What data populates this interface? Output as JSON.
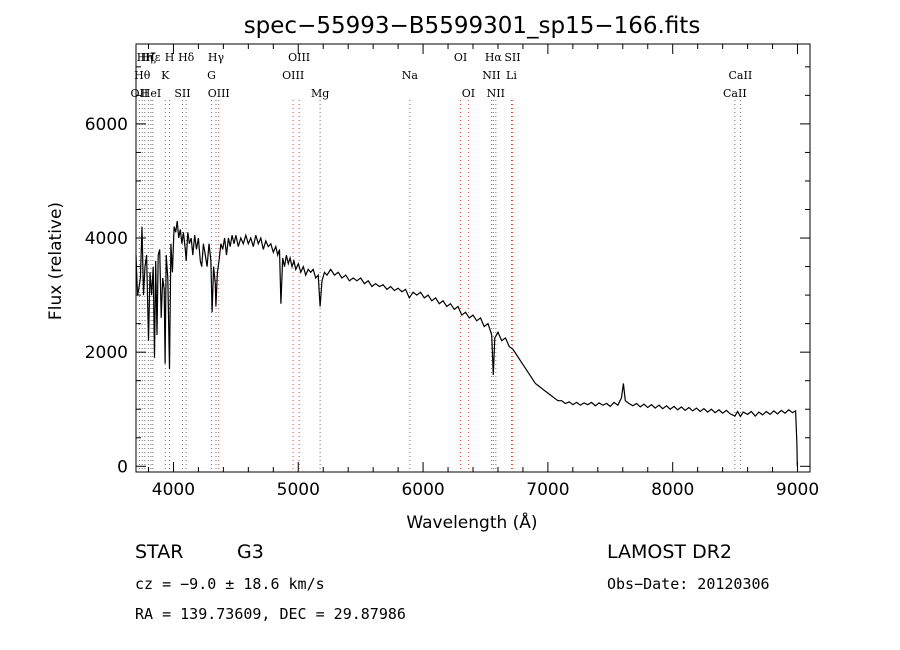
{
  "title": "spec−55993−B5599301_sp15−166.fits",
  "info": {
    "object_class": "STAR",
    "subclass": "G3",
    "survey": "LAMOST DR2",
    "cz": "cz = −9.0 ± 18.6 km/s",
    "obs_date": "Obs−Date: 20120306",
    "coords": "RA = 139.73609, DEC =  29.87986"
  },
  "colors": {
    "emission_line": "#e8462e",
    "absorption_line": "#6e6e6e",
    "spectrum": "#000000"
  },
  "chart_data": {
    "type": "line",
    "title": "spec−55993−B5599301_sp15−166.fits",
    "xlabel": "Wavelength (Å)",
    "ylabel": "Flux (relative)",
    "xlim": [
      3700,
      9100
    ],
    "ylim": [
      -100,
      7400
    ],
    "xticks": [
      4000,
      5000,
      6000,
      7000,
      8000,
      9000
    ],
    "yticks": [
      0,
      2000,
      4000,
      6000
    ],
    "xtick_labels": [
      "4000",
      "5000",
      "6000",
      "7000",
      "8000",
      "9000"
    ],
    "ytick_labels": [
      "0",
      "2000",
      "4000",
      "6000"
    ],
    "grid": false,
    "series": [
      {
        "points": [
          [
            3700,
            3700
          ],
          [
            3712,
            3000
          ],
          [
            3722,
            3100
          ],
          [
            3735,
            3300
          ],
          [
            3748,
            4200
          ],
          [
            3760,
            3000
          ],
          [
            3772,
            3500
          ],
          [
            3785,
            3700
          ],
          [
            3800,
            2200
          ],
          [
            3812,
            3400
          ],
          [
            3825,
            3000
          ],
          [
            3838,
            3500
          ],
          [
            3848,
            1900
          ],
          [
            3858,
            3600
          ],
          [
            3868,
            2300
          ],
          [
            3878,
            3700
          ],
          [
            3890,
            3800
          ],
          [
            3902,
            2600
          ],
          [
            3914,
            3300
          ],
          [
            3926,
            3100
          ],
          [
            3933,
            1800
          ],
          [
            3942,
            3700
          ],
          [
            3955,
            3300
          ],
          [
            3968,
            1700
          ],
          [
            3980,
            3900
          ],
          [
            3992,
            3400
          ],
          [
            4005,
            4200
          ],
          [
            4018,
            4100
          ],
          [
            4030,
            4300
          ],
          [
            4042,
            4000
          ],
          [
            4055,
            4150
          ],
          [
            4068,
            3900
          ],
          [
            4080,
            4100
          ],
          [
            4095,
            3800
          ],
          [
            4102,
            3600
          ],
          [
            4115,
            4100
          ],
          [
            4128,
            3900
          ],
          [
            4142,
            4000
          ],
          [
            4155,
            3700
          ],
          [
            4170,
            4050
          ],
          [
            4185,
            3800
          ],
          [
            4200,
            4000
          ],
          [
            4215,
            3600
          ],
          [
            4226,
            3500
          ],
          [
            4240,
            3900
          ],
          [
            4255,
            3700
          ],
          [
            4270,
            3500
          ],
          [
            4285,
            3900
          ],
          [
            4300,
            3600
          ],
          [
            4310,
            2700
          ],
          [
            4322,
            3500
          ],
          [
            4335,
            3200
          ],
          [
            4340,
            2800
          ],
          [
            4352,
            3400
          ],
          [
            4365,
            3600
          ],
          [
            4380,
            3900
          ],
          [
            4395,
            3800
          ],
          [
            4410,
            4000
          ],
          [
            4425,
            3700
          ],
          [
            4440,
            4000
          ],
          [
            4455,
            3850
          ],
          [
            4470,
            4050
          ],
          [
            4485,
            3900
          ],
          [
            4500,
            4050
          ],
          [
            4520,
            3850
          ],
          [
            4540,
            4000
          ],
          [
            4560,
            3900
          ],
          [
            4580,
            4050
          ],
          [
            4600,
            3900
          ],
          [
            4620,
            4000
          ],
          [
            4640,
            3850
          ],
          [
            4660,
            4050
          ],
          [
            4680,
            3900
          ],
          [
            4700,
            4000
          ],
          [
            4720,
            3800
          ],
          [
            4740,
            3950
          ],
          [
            4760,
            3850
          ],
          [
            4780,
            3900
          ],
          [
            4800,
            3750
          ],
          [
            4820,
            3850
          ],
          [
            4835,
            3700
          ],
          [
            4850,
            3800
          ],
          [
            4861,
            2850
          ],
          [
            4875,
            3650
          ],
          [
            4890,
            3500
          ],
          [
            4905,
            3700
          ],
          [
            4920,
            3550
          ],
          [
            4935,
            3650
          ],
          [
            4950,
            3500
          ],
          [
            4965,
            3600
          ],
          [
            4980,
            3450
          ],
          [
            5000,
            3550
          ],
          [
            5020,
            3400
          ],
          [
            5040,
            3500
          ],
          [
            5060,
            3350
          ],
          [
            5080,
            3450
          ],
          [
            5100,
            3400
          ],
          [
            5120,
            3450
          ],
          [
            5140,
            3300
          ],
          [
            5160,
            3350
          ],
          [
            5175,
            2800
          ],
          [
            5190,
            3250
          ],
          [
            5210,
            3400
          ],
          [
            5230,
            3350
          ],
          [
            5260,
            3450
          ],
          [
            5290,
            3350
          ],
          [
            5320,
            3400
          ],
          [
            5350,
            3300
          ],
          [
            5380,
            3350
          ],
          [
            5410,
            3250
          ],
          [
            5440,
            3300
          ],
          [
            5470,
            3250
          ],
          [
            5500,
            3300
          ],
          [
            5530,
            3200
          ],
          [
            5560,
            3250
          ],
          [
            5590,
            3150
          ],
          [
            5620,
            3200
          ],
          [
            5650,
            3150
          ],
          [
            5680,
            3180
          ],
          [
            5710,
            3100
          ],
          [
            5740,
            3150
          ],
          [
            5770,
            3080
          ],
          [
            5800,
            3120
          ],
          [
            5830,
            3060
          ],
          [
            5860,
            3100
          ],
          [
            5890,
            2950
          ],
          [
            5920,
            3050
          ],
          [
            5950,
            3000
          ],
          [
            5980,
            3050
          ],
          [
            6010,
            2950
          ],
          [
            6040,
            3000
          ],
          [
            6070,
            2900
          ],
          [
            6100,
            2950
          ],
          [
            6130,
            2850
          ],
          [
            6160,
            2900
          ],
          [
            6190,
            2800
          ],
          [
            6220,
            2850
          ],
          [
            6250,
            2750
          ],
          [
            6280,
            2800
          ],
          [
            6310,
            2650
          ],
          [
            6340,
            2700
          ],
          [
            6370,
            2600
          ],
          [
            6400,
            2650
          ],
          [
            6430,
            2550
          ],
          [
            6460,
            2600
          ],
          [
            6490,
            2450
          ],
          [
            6520,
            2500
          ],
          [
            6550,
            2300
          ],
          [
            6563,
            1600
          ],
          [
            6575,
            2250
          ],
          [
            6600,
            2350
          ],
          [
            6630,
            2200
          ],
          [
            6660,
            2250
          ],
          [
            6690,
            2100
          ],
          [
            6720,
            2050
          ],
          [
            6750,
            1950
          ],
          [
            6780,
            1850
          ],
          [
            6810,
            1750
          ],
          [
            6840,
            1650
          ],
          [
            6870,
            1550
          ],
          [
            6900,
            1450
          ],
          [
            6930,
            1400
          ],
          [
            6960,
            1350
          ],
          [
            6990,
            1300
          ],
          [
            7020,
            1250
          ],
          [
            7050,
            1200
          ],
          [
            7080,
            1150
          ],
          [
            7110,
            1150
          ],
          [
            7140,
            1100
          ],
          [
            7170,
            1130
          ],
          [
            7200,
            1080
          ],
          [
            7230,
            1120
          ],
          [
            7260,
            1070
          ],
          [
            7290,
            1110
          ],
          [
            7320,
            1080
          ],
          [
            7350,
            1120
          ],
          [
            7380,
            1060
          ],
          [
            7410,
            1110
          ],
          [
            7440,
            1070
          ],
          [
            7470,
            1100
          ],
          [
            7500,
            1050
          ],
          [
            7530,
            1120
          ],
          [
            7560,
            1070
          ],
          [
            7590,
            1200
          ],
          [
            7605,
            1450
          ],
          [
            7620,
            1150
          ],
          [
            7650,
            1100
          ],
          [
            7680,
            1060
          ],
          [
            7710,
            1100
          ],
          [
            7740,
            1040
          ],
          [
            7770,
            1090
          ],
          [
            7800,
            1030
          ],
          [
            7830,
            1080
          ],
          [
            7860,
            1020
          ],
          [
            7890,
            1070
          ],
          [
            7920,
            1010
          ],
          [
            7950,
            1060
          ],
          [
            7980,
            1000
          ],
          [
            8010,
            1050
          ],
          [
            8040,
            990
          ],
          [
            8070,
            1040
          ],
          [
            8100,
            980
          ],
          [
            8130,
            1030
          ],
          [
            8160,
            970
          ],
          [
            8190,
            1020
          ],
          [
            8220,
            960
          ],
          [
            8250,
            1010
          ],
          [
            8280,
            950
          ],
          [
            8310,
            1000
          ],
          [
            8340,
            940
          ],
          [
            8370,
            990
          ],
          [
            8400,
            930
          ],
          [
            8430,
            980
          ],
          [
            8460,
            920
          ],
          [
            8498,
            880
          ],
          [
            8520,
            960
          ],
          [
            8542,
            870
          ],
          [
            8565,
            950
          ],
          [
            8600,
            910
          ],
          [
            8630,
            960
          ],
          [
            8662,
            880
          ],
          [
            8690,
            950
          ],
          [
            8720,
            900
          ],
          [
            8750,
            960
          ],
          [
            8780,
            910
          ],
          [
            8810,
            970
          ],
          [
            8840,
            920
          ],
          [
            8870,
            980
          ],
          [
            8900,
            930
          ],
          [
            8930,
            990
          ],
          [
            8960,
            940
          ],
          [
            8985,
            970
          ],
          [
            8995,
            400
          ],
          [
            8998,
            0
          ]
        ]
      }
    ],
    "lines": [
      {
        "label": "OII",
        "wave": 3727,
        "row": 3,
        "kind": "emission"
      },
      {
        "label": "Hθ",
        "wave": 3750,
        "row": 2,
        "kind": "absorption"
      },
      {
        "label": "Hη",
        "wave": 3771,
        "row": 1,
        "kind": "absorption"
      },
      {
        "label": "Hζ",
        "wave": 3799,
        "row": 1,
        "kind": "absorption"
      },
      {
        "label": "HeI",
        "wave": 3820,
        "row": 3,
        "kind": "absorption"
      },
      {
        "label": "Hε",
        "wave": 3835,
        "row": 1,
        "kind": "absorption"
      },
      {
        "label": "H",
        "wave": 3969,
        "row": 1,
        "kind": "absorption"
      },
      {
        "label": "K",
        "wave": 3934,
        "row": 2,
        "kind": "absorption"
      },
      {
        "label": "SII",
        "wave": 4072,
        "row": 3,
        "kind": "absorption"
      },
      {
        "label": "Hδ",
        "wave": 4102,
        "row": 1,
        "kind": "absorption"
      },
      {
        "label": "Hγ",
        "wave": 4341,
        "row": 1,
        "kind": "absorption"
      },
      {
        "label": "G",
        "wave": 4305,
        "row": 2,
        "kind": "absorption"
      },
      {
        "label": "OIII",
        "wave": 4363,
        "row": 3,
        "kind": "emission"
      },
      {
        "label": "OIII",
        "wave": 5007,
        "row": 1,
        "kind": "emission"
      },
      {
        "label": "OIII",
        "wave": 4959,
        "row": 2,
        "kind": "emission"
      },
      {
        "label": "Mg",
        "wave": 5175,
        "row": 3,
        "kind": "absorption"
      },
      {
        "label": "Na",
        "wave": 5894,
        "row": 2,
        "kind": "absorption"
      },
      {
        "label": "OI",
        "wave": 6300,
        "row": 1,
        "kind": "emission"
      },
      {
        "label": "OI",
        "wave": 6363,
        "row": 3,
        "kind": "emission"
      },
      {
        "label": "Hα",
        "wave": 6563,
        "row": 1,
        "kind": "emission"
      },
      {
        "label": "NII",
        "wave": 6548,
        "row": 2,
        "kind": "emission"
      },
      {
        "label": "NII",
        "wave": 6583,
        "row": 3,
        "kind": "emission"
      },
      {
        "label": "SII",
        "wave": 6716,
        "row": 1,
        "kind": "emission"
      },
      {
        "label": "Li",
        "wave": 6708,
        "row": 2,
        "kind": "absorption"
      },
      {
        "label": "CaII",
        "wave": 8542,
        "row": 2,
        "kind": "absorption"
      },
      {
        "label": "CaII",
        "wave": 8498,
        "row": 3,
        "kind": "absorption"
      }
    ]
  }
}
